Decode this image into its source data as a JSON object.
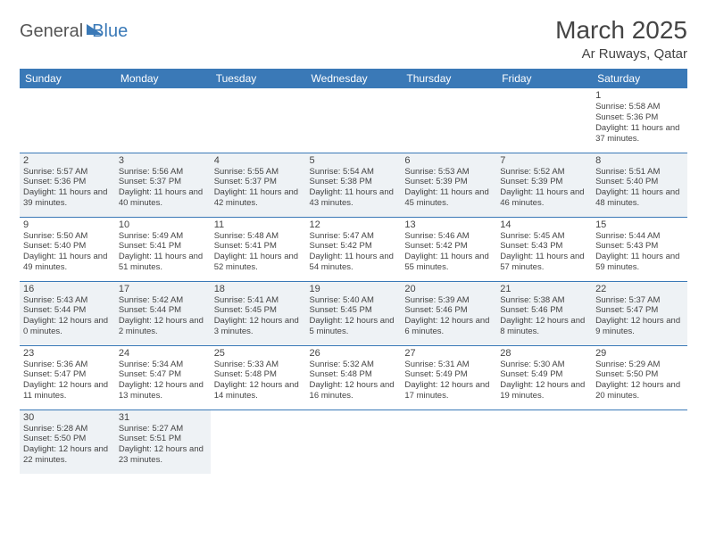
{
  "logo": {
    "part1": "General",
    "part2": "Blue"
  },
  "title": "March 2025",
  "subtitle": "Ar Ruways, Qatar",
  "colors": {
    "header_bg": "#3a79b7",
    "header_text": "#ffffff",
    "alt_row_bg": "#eef2f5",
    "border": "#3a79b7",
    "text": "#444444"
  },
  "weekdays": [
    "Sunday",
    "Monday",
    "Tuesday",
    "Wednesday",
    "Thursday",
    "Friday",
    "Saturday"
  ],
  "weeks": [
    [
      null,
      null,
      null,
      null,
      null,
      null,
      {
        "n": "1",
        "sr": "5:58 AM",
        "ss": "5:36 PM",
        "dl": "11 hours and 37 minutes."
      }
    ],
    [
      {
        "n": "2",
        "sr": "5:57 AM",
        "ss": "5:36 PM",
        "dl": "11 hours and 39 minutes."
      },
      {
        "n": "3",
        "sr": "5:56 AM",
        "ss": "5:37 PM",
        "dl": "11 hours and 40 minutes."
      },
      {
        "n": "4",
        "sr": "5:55 AM",
        "ss": "5:37 PM",
        "dl": "11 hours and 42 minutes."
      },
      {
        "n": "5",
        "sr": "5:54 AM",
        "ss": "5:38 PM",
        "dl": "11 hours and 43 minutes."
      },
      {
        "n": "6",
        "sr": "5:53 AM",
        "ss": "5:39 PM",
        "dl": "11 hours and 45 minutes."
      },
      {
        "n": "7",
        "sr": "5:52 AM",
        "ss": "5:39 PM",
        "dl": "11 hours and 46 minutes."
      },
      {
        "n": "8",
        "sr": "5:51 AM",
        "ss": "5:40 PM",
        "dl": "11 hours and 48 minutes."
      }
    ],
    [
      {
        "n": "9",
        "sr": "5:50 AM",
        "ss": "5:40 PM",
        "dl": "11 hours and 49 minutes."
      },
      {
        "n": "10",
        "sr": "5:49 AM",
        "ss": "5:41 PM",
        "dl": "11 hours and 51 minutes."
      },
      {
        "n": "11",
        "sr": "5:48 AM",
        "ss": "5:41 PM",
        "dl": "11 hours and 52 minutes."
      },
      {
        "n": "12",
        "sr": "5:47 AM",
        "ss": "5:42 PM",
        "dl": "11 hours and 54 minutes."
      },
      {
        "n": "13",
        "sr": "5:46 AM",
        "ss": "5:42 PM",
        "dl": "11 hours and 55 minutes."
      },
      {
        "n": "14",
        "sr": "5:45 AM",
        "ss": "5:43 PM",
        "dl": "11 hours and 57 minutes."
      },
      {
        "n": "15",
        "sr": "5:44 AM",
        "ss": "5:43 PM",
        "dl": "11 hours and 59 minutes."
      }
    ],
    [
      {
        "n": "16",
        "sr": "5:43 AM",
        "ss": "5:44 PM",
        "dl": "12 hours and 0 minutes."
      },
      {
        "n": "17",
        "sr": "5:42 AM",
        "ss": "5:44 PM",
        "dl": "12 hours and 2 minutes."
      },
      {
        "n": "18",
        "sr": "5:41 AM",
        "ss": "5:45 PM",
        "dl": "12 hours and 3 minutes."
      },
      {
        "n": "19",
        "sr": "5:40 AM",
        "ss": "5:45 PM",
        "dl": "12 hours and 5 minutes."
      },
      {
        "n": "20",
        "sr": "5:39 AM",
        "ss": "5:46 PM",
        "dl": "12 hours and 6 minutes."
      },
      {
        "n": "21",
        "sr": "5:38 AM",
        "ss": "5:46 PM",
        "dl": "12 hours and 8 minutes."
      },
      {
        "n": "22",
        "sr": "5:37 AM",
        "ss": "5:47 PM",
        "dl": "12 hours and 9 minutes."
      }
    ],
    [
      {
        "n": "23",
        "sr": "5:36 AM",
        "ss": "5:47 PM",
        "dl": "12 hours and 11 minutes."
      },
      {
        "n": "24",
        "sr": "5:34 AM",
        "ss": "5:47 PM",
        "dl": "12 hours and 13 minutes."
      },
      {
        "n": "25",
        "sr": "5:33 AM",
        "ss": "5:48 PM",
        "dl": "12 hours and 14 minutes."
      },
      {
        "n": "26",
        "sr": "5:32 AM",
        "ss": "5:48 PM",
        "dl": "12 hours and 16 minutes."
      },
      {
        "n": "27",
        "sr": "5:31 AM",
        "ss": "5:49 PM",
        "dl": "12 hours and 17 minutes."
      },
      {
        "n": "28",
        "sr": "5:30 AM",
        "ss": "5:49 PM",
        "dl": "12 hours and 19 minutes."
      },
      {
        "n": "29",
        "sr": "5:29 AM",
        "ss": "5:50 PM",
        "dl": "12 hours and 20 minutes."
      }
    ],
    [
      {
        "n": "30",
        "sr": "5:28 AM",
        "ss": "5:50 PM",
        "dl": "12 hours and 22 minutes."
      },
      {
        "n": "31",
        "sr": "5:27 AM",
        "ss": "5:51 PM",
        "dl": "12 hours and 23 minutes."
      },
      null,
      null,
      null,
      null,
      null
    ]
  ],
  "labels": {
    "sunrise": "Sunrise:",
    "sunset": "Sunset:",
    "daylight": "Daylight:"
  }
}
